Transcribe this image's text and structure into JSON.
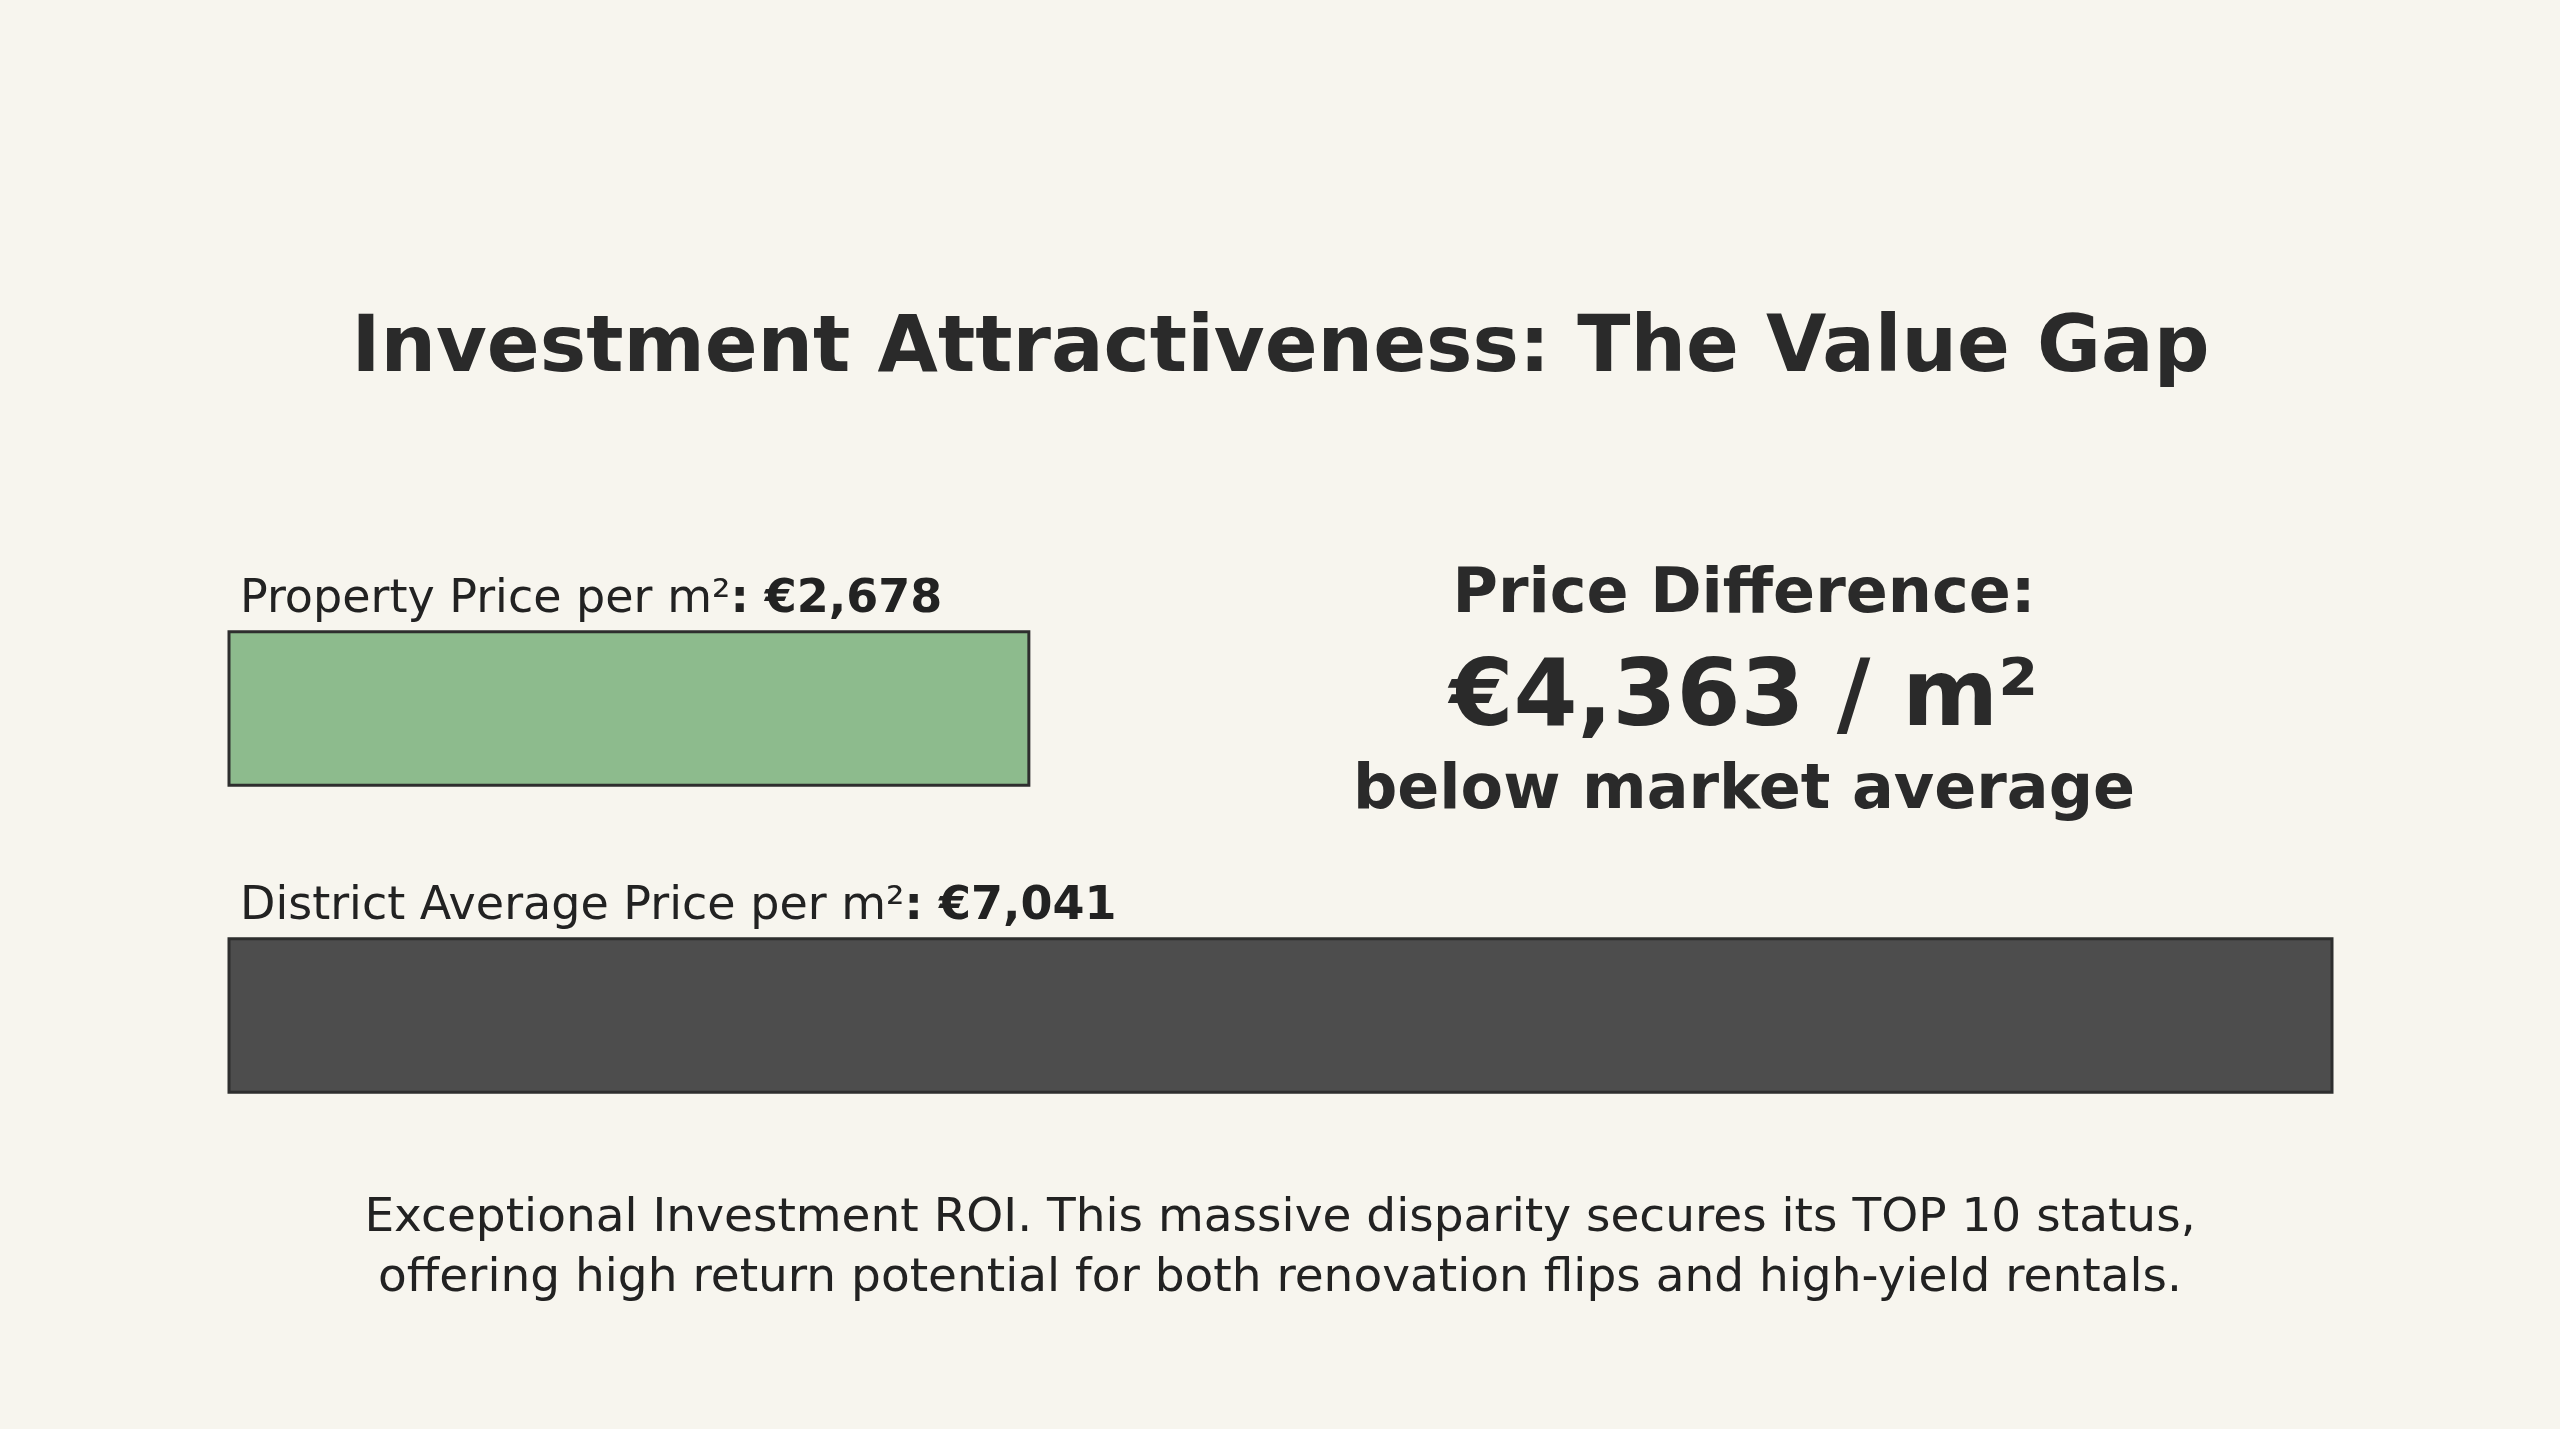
{
  "chart_data": {
    "type": "bar",
    "orientation": "horizontal",
    "title": "Investment Attractiveness: The Value Gap",
    "categories": [
      "Property Price per m²",
      "District Average Price per m²"
    ],
    "values": [
      2678,
      7041
    ],
    "colors": [
      "#8dbb8d",
      "#4d4d4d"
    ],
    "value_labels": [
      ": €2,678",
      ": €7,041"
    ],
    "tick_labels": false,
    "annotations": [
      "Price Difference:",
      "€4,363 / m²",
      "below market average",
      "Exceptional Investment ROI. This massive disparity secures its TOP 10 status, offering high return potential for both renovation flips and high-yield rentals."
    ]
  }
}
